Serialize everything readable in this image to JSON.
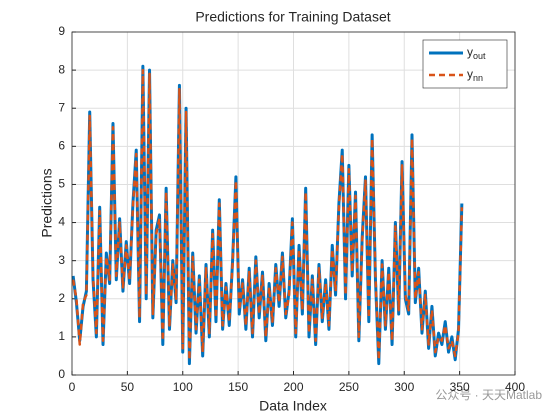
{
  "chart_data": {
    "type": "line",
    "title": "Predictions for Training Dataset",
    "x_label": "Data Index",
    "y_label": "Predictions",
    "x": [
      1,
      4,
      7,
      10,
      13,
      16,
      19,
      22,
      25,
      28,
      31,
      34,
      37,
      40,
      43,
      46,
      49,
      52,
      55,
      58,
      61,
      64,
      67,
      70,
      73,
      76,
      79,
      82,
      85,
      88,
      91,
      94,
      97,
      100,
      103,
      106,
      109,
      112,
      115,
      118,
      121,
      124,
      127,
      130,
      133,
      136,
      139,
      142,
      145,
      148,
      151,
      154,
      157,
      160,
      163,
      166,
      169,
      172,
      175,
      178,
      181,
      184,
      187,
      190,
      193,
      196,
      199,
      202,
      205,
      208,
      211,
      214,
      217,
      220,
      223,
      226,
      229,
      232,
      235,
      238,
      241,
      244,
      247,
      250,
      253,
      256,
      259,
      262,
      265,
      268,
      271,
      274,
      277,
      280,
      283,
      286,
      289,
      292,
      295,
      298,
      301,
      304,
      307,
      310,
      313,
      316,
      319,
      322,
      325,
      328,
      331,
      334,
      337,
      340,
      343,
      346,
      349,
      352
    ],
    "series": [
      {
        "name": "y",
        "subscript": "out",
        "color": "#0072bd",
        "dash": false,
        "values": [
          2.6,
          1.9,
          0.9,
          1.8,
          2.2,
          6.9,
          2.5,
          1.0,
          4.4,
          0.8,
          3.2,
          2.4,
          6.6,
          2.5,
          4.1,
          2.2,
          3.5,
          2.4,
          4.5,
          5.9,
          1.4,
          8.1,
          2.0,
          8.0,
          1.5,
          3.8,
          4.2,
          0.8,
          4.9,
          1.2,
          3.0,
          1.9,
          7.6,
          0.6,
          7.0,
          0.3,
          3.2,
          1.1,
          2.6,
          0.5,
          2.9,
          1.0,
          3.8,
          1.4,
          4.6,
          1.2,
          2.4,
          1.3,
          3.0,
          5.2,
          1.6,
          2.5,
          1.2,
          2.8,
          1.0,
          3.1,
          1.5,
          2.7,
          0.9,
          2.4,
          1.3,
          2.9,
          1.8,
          3.2,
          1.5,
          2.2,
          4.1,
          1.0,
          3.4,
          1.6,
          4.9,
          1.0,
          2.6,
          0.8,
          2.9,
          1.4,
          2.5,
          1.2,
          3.4,
          2.1,
          4.5,
          5.9,
          2.0,
          5.5,
          2.6,
          4.8,
          0.9,
          3.6,
          5.2,
          1.4,
          6.3,
          2.5,
          0.3,
          3.0,
          1.2,
          2.8,
          0.8,
          4.0,
          1.6,
          5.6,
          2.0,
          1.6,
          6.3,
          1.9,
          2.8,
          1.1,
          2.2,
          0.7,
          1.8,
          0.5,
          1.1,
          0.8,
          1.4,
          0.6,
          1.0,
          0.4,
          1.2,
          4.5
        ]
      },
      {
        "name": "y",
        "subscript": "nn",
        "color": "#d95319",
        "dash": true,
        "values": [
          2.5,
          2.0,
          0.8,
          1.9,
          2.1,
          6.8,
          2.6,
          1.1,
          4.3,
          0.9,
          3.1,
          2.5,
          6.5,
          2.6,
          4.0,
          2.3,
          3.4,
          2.5,
          4.4,
          5.8,
          1.5,
          8.0,
          2.1,
          7.9,
          1.6,
          3.7,
          4.1,
          0.9,
          4.8,
          1.3,
          2.9,
          2.0,
          7.5,
          0.7,
          6.9,
          0.4,
          3.1,
          1.2,
          2.5,
          0.6,
          2.8,
          1.1,
          3.7,
          1.5,
          4.5,
          1.3,
          2.3,
          1.4,
          2.9,
          5.1,
          1.7,
          2.4,
          1.3,
          2.7,
          1.1,
          3.0,
          1.6,
          2.6,
          1.0,
          2.3,
          1.4,
          2.8,
          1.9,
          3.1,
          1.6,
          2.1,
          4.0,
          1.1,
          3.3,
          1.7,
          4.8,
          1.1,
          2.5,
          0.9,
          2.8,
          1.5,
          2.4,
          1.3,
          3.3,
          2.2,
          4.4,
          5.8,
          2.1,
          5.4,
          2.7,
          4.7,
          1.0,
          3.5,
          5.1,
          1.5,
          6.2,
          2.6,
          0.4,
          2.9,
          1.3,
          2.7,
          0.9,
          3.9,
          1.7,
          5.5,
          2.1,
          1.7,
          6.2,
          2.0,
          2.7,
          1.2,
          2.1,
          0.8,
          1.7,
          0.6,
          1.0,
          0.9,
          1.3,
          0.7,
          0.9,
          0.5,
          1.1,
          4.4
        ]
      }
    ],
    "xlim": [
      0,
      400
    ],
    "ylim": [
      0,
      9
    ],
    "xticks": [
      0,
      50,
      100,
      150,
      200,
      250,
      300,
      350,
      400
    ],
    "yticks": [
      0,
      1,
      2,
      3,
      4,
      5,
      6,
      7,
      8,
      9
    ],
    "grid": true,
    "legend": "northeast"
  },
  "watermark": "公众号 · 天天Matlab"
}
